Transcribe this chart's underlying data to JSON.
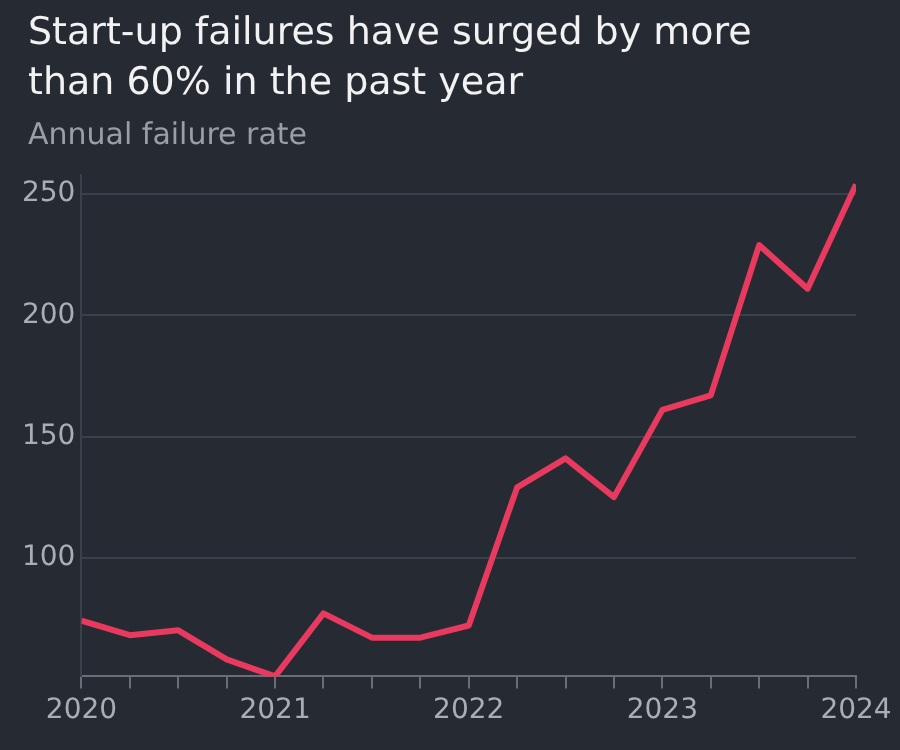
{
  "chart_data": {
    "type": "line",
    "title": "Start-up failures have surged by more than 60% in the past year",
    "subtitle": "Annual failure rate",
    "x": [
      2020,
      2020.25,
      2020.5,
      2020.75,
      2021,
      2021.25,
      2021.5,
      2021.75,
      2022,
      2022.25,
      2022.5,
      2022.75,
      2023,
      2023.25,
      2023.5,
      2023.75,
      2024
    ],
    "series": [
      {
        "color": "#e8395f",
        "values": [
          74,
          68,
          70,
          58,
          51,
          77,
          67,
          67,
          72,
          129,
          141,
          125,
          161,
          167,
          229,
          211,
          254
        ]
      }
    ],
    "xlim": [
      2020,
      2024
    ],
    "xticks": [
      2020,
      {
        "value": 2020.25,
        "label": null
      },
      {
        "value": 2020.5,
        "label": null
      },
      {
        "value": 2020.75,
        "label": null
      },
      2021,
      {
        "value": 2021.25,
        "label": null
      },
      {
        "value": 2021.5,
        "label": null
      },
      {
        "value": 2021.75,
        "label": null
      },
      2022,
      {
        "value": 2022.25,
        "label": null
      },
      {
        "value": 2022.5,
        "label": null
      },
      {
        "value": 2022.75,
        "label": null
      },
      2023,
      {
        "value": 2023.25,
        "label": null
      },
      {
        "value": 2023.5,
        "label": null
      },
      {
        "value": 2023.75,
        "label": null
      },
      2024
    ],
    "ylim": [
      51,
      258
    ],
    "yticks": [
      100,
      150,
      200,
      250
    ],
    "grid": "y",
    "legend": false,
    "marker": "none",
    "line_style": "solid"
  }
}
